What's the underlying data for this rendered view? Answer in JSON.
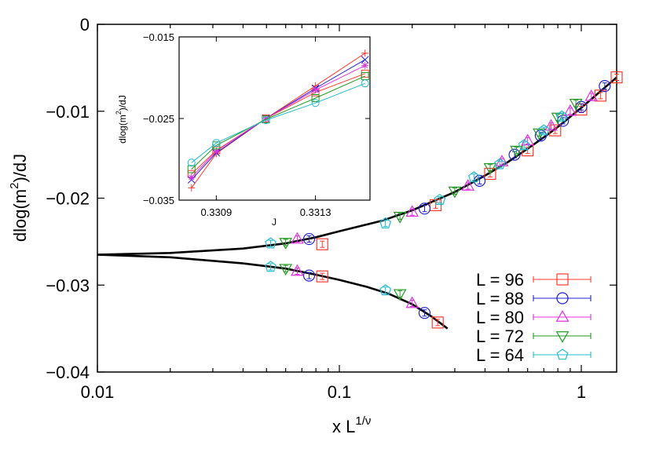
{
  "chart_data": [
    {
      "type": "scatter",
      "xlabel": "x L",
      "xlabel_sup": "1/ν",
      "ylabel": "dlog(m",
      "ylabel_sup": "2",
      "ylabel_tail": ")/dJ",
      "xscale": "log",
      "xlim": [
        0.01,
        1.4
      ],
      "ylim": [
        -0.04,
        0
      ],
      "x_ticks": [
        0.01,
        0.1,
        1
      ],
      "x_tick_labels": [
        "0.01",
        "0.1",
        "1"
      ],
      "y_ticks": [
        0,
        -0.01,
        -0.02,
        -0.03,
        -0.04
      ],
      "y_tick_labels": [
        "0",
        "−0.01",
        "−0.02",
        "−0.03",
        "−0.04"
      ],
      "legend_position": "bottom-right",
      "series": [
        {
          "name": "L = 96",
          "color": "#ff3b30",
          "marker": "square",
          "points": [
            [
              0.085,
              -0.0253
            ],
            [
              0.25,
              -0.0208
            ],
            [
              0.42,
              -0.0172
            ],
            [
              0.6,
              -0.0145
            ],
            [
              0.78,
              -0.0122
            ],
            [
              1.0,
              -0.0098
            ],
            [
              1.2,
              -0.0082
            ],
            [
              1.4,
              -0.0061
            ],
            [
              0.085,
              -0.029
            ],
            [
              0.255,
              -0.0343
            ]
          ]
        },
        {
          "name": "L = 88",
          "color": "#2222cc",
          "marker": "circle",
          "points": [
            [
              0.075,
              -0.0247
            ],
            [
              0.225,
              -0.0212
            ],
            [
              0.38,
              -0.018
            ],
            [
              0.53,
              -0.015
            ],
            [
              0.68,
              -0.0128
            ],
            [
              0.84,
              -0.0111
            ],
            [
              1.0,
              -0.0095
            ],
            [
              1.25,
              -0.0071
            ],
            [
              0.075,
              -0.0289
            ],
            [
              0.225,
              -0.0332
            ]
          ]
        },
        {
          "name": "L = 80",
          "color": "#dd33dd",
          "marker": "triangle-up",
          "points": [
            [
              0.067,
              -0.0247
            ],
            [
              0.2,
              -0.0216
            ],
            [
              0.34,
              -0.0186
            ],
            [
              0.47,
              -0.0158
            ],
            [
              0.6,
              -0.0134
            ],
            [
              0.75,
              -0.0117
            ],
            [
              0.9,
              -0.01
            ],
            [
              1.1,
              -0.0083
            ],
            [
              0.067,
              -0.0284
            ],
            [
              0.2,
              -0.0321
            ]
          ]
        },
        {
          "name": "L = 72",
          "color": "#229922",
          "marker": "triangle-down",
          "points": [
            [
              0.06,
              -0.0251
            ],
            [
              0.178,
              -0.0221
            ],
            [
              0.3,
              -0.0192
            ],
            [
              0.42,
              -0.0165
            ],
            [
              0.54,
              -0.0145
            ],
            [
              0.67,
              -0.0125
            ],
            [
              0.8,
              -0.0107
            ],
            [
              0.95,
              -0.0091
            ],
            [
              0.06,
              -0.0281
            ],
            [
              0.178,
              -0.031
            ]
          ]
        },
        {
          "name": "L = 64",
          "color": "#22bbcc",
          "marker": "pentagon",
          "points": [
            [
              0.052,
              -0.0252
            ],
            [
              0.155,
              -0.0229
            ],
            [
              0.26,
              -0.0202
            ],
            [
              0.36,
              -0.0176
            ],
            [
              0.46,
              -0.0161
            ],
            [
              0.58,
              -0.0139
            ],
            [
              0.7,
              -0.0122
            ],
            [
              0.83,
              -0.0106
            ],
            [
              0.052,
              -0.0279
            ],
            [
              0.155,
              -0.0306
            ]
          ]
        }
      ],
      "fit_curves": [
        {
          "name": "upper",
          "color": "#000000",
          "points": [
            [
              0.01,
              -0.0265
            ],
            [
              0.02,
              -0.0263
            ],
            [
              0.04,
              -0.0258
            ],
            [
              0.06,
              -0.0252
            ],
            [
              0.08,
              -0.0245
            ],
            [
              0.1,
              -0.0238
            ],
            [
              0.15,
              -0.0226
            ],
            [
              0.2,
              -0.0214
            ],
            [
              0.3,
              -0.0193
            ],
            [
              0.4,
              -0.0174
            ],
            [
              0.5,
              -0.0158
            ],
            [
              0.6,
              -0.0143
            ],
            [
              0.7,
              -0.013
            ],
            [
              0.8,
              -0.0118
            ],
            [
              1.0,
              -0.0096
            ],
            [
              1.2,
              -0.0077
            ],
            [
              1.4,
              -0.0061
            ]
          ]
        },
        {
          "name": "lower",
          "color": "#000000",
          "points": [
            [
              0.01,
              -0.0265
            ],
            [
              0.02,
              -0.0268
            ],
            [
              0.04,
              -0.0275
            ],
            [
              0.06,
              -0.0281
            ],
            [
              0.08,
              -0.0288
            ],
            [
              0.1,
              -0.0294
            ],
            [
              0.13,
              -0.0302
            ],
            [
              0.16,
              -0.031
            ],
            [
              0.2,
              -0.0322
            ],
            [
              0.24,
              -0.0336
            ],
            [
              0.28,
              -0.035
            ]
          ]
        }
      ]
    },
    {
      "type": "line",
      "role": "inset",
      "xlabel": "J",
      "ylabel": "dlog(m",
      "ylabel_sup": "2",
      "ylabel_tail": ")/dJ",
      "xlim": [
        0.33075,
        0.33152
      ],
      "ylim": [
        -0.035,
        -0.015
      ],
      "x_ticks": [
        0.3309,
        0.3313
      ],
      "x_tick_labels": [
        "0.3309",
        "0.3313"
      ],
      "y_ticks": [
        -0.015,
        -0.025,
        -0.035
      ],
      "y_tick_labels": [
        "−0.015",
        "−0.025",
        "−0.035"
      ],
      "x": [
        0.3308,
        0.3309,
        0.3311,
        0.3313,
        0.3315
      ],
      "series": [
        {
          "name": "L = 96",
          "color": "#ff3b30",
          "marker": "plus",
          "values": [
            -0.0335,
            -0.0293,
            -0.025,
            -0.021,
            -0.017
          ]
        },
        {
          "name": "L = 96",
          "color": "#ff3b30",
          "marker": "square",
          "values": [
            -0.0318,
            -0.0289,
            -0.025,
            -0.0218,
            -0.0195
          ]
        },
        {
          "name": "L = 88",
          "color": "#2222cc",
          "marker": "x",
          "values": [
            -0.0325,
            -0.0292,
            -0.025,
            -0.0213,
            -0.0178
          ]
        },
        {
          "name": "L = 80",
          "color": "#dd33dd",
          "marker": "star",
          "values": [
            -0.0322,
            -0.029,
            -0.025,
            -0.0215,
            -0.0185
          ]
        },
        {
          "name": "L = 72",
          "color": "#229922",
          "marker": "square",
          "values": [
            -0.0312,
            -0.0283,
            -0.0251,
            -0.0225,
            -0.0198
          ]
        },
        {
          "name": "L = 64",
          "color": "#22bbcc",
          "marker": "circle",
          "values": [
            -0.0304,
            -0.028,
            -0.0252,
            -0.0231,
            -0.0207
          ]
        }
      ]
    }
  ]
}
